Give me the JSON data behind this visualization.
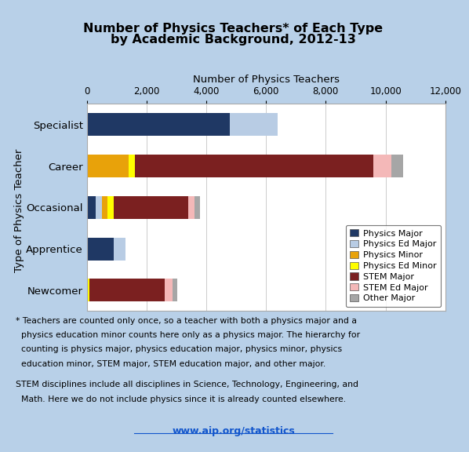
{
  "title_line1": "Number of Physics Teachers* of Each Type",
  "title_line2": "by Academic Background, 2012-13",
  "xlabel": "Number of Physics Teachers",
  "ylabel": "Type of Physics Teacher",
  "categories": [
    "Newcomer",
    "Apprentice",
    "Occasional",
    "Career",
    "Specialist"
  ],
  "series": {
    "Physics Major": [
      0,
      900,
      300,
      0,
      4800
    ],
    "Physics Ed Major": [
      0,
      400,
      200,
      0,
      1600
    ],
    "Physics Minor": [
      0,
      0,
      200,
      1400,
      0
    ],
    "Physics Ed Minor": [
      100,
      0,
      200,
      200,
      0
    ],
    "STEM Major": [
      2500,
      0,
      2500,
      8000,
      0
    ],
    "STEM Ed Major": [
      280,
      0,
      200,
      600,
      0
    ],
    "Other Major": [
      150,
      0,
      200,
      400,
      0
    ]
  },
  "colors": {
    "Physics Major": "#1f3864",
    "Physics Ed Major": "#b8cce4",
    "Physics Minor": "#e8a20a",
    "Physics Ed Minor": "#ffff00",
    "STEM Major": "#7b2020",
    "STEM Ed Major": "#f4b8b8",
    "Other Major": "#a6a6a6"
  },
  "xlim": [
    0,
    12000
  ],
  "xticks": [
    0,
    2000,
    4000,
    6000,
    8000,
    10000,
    12000
  ],
  "footnote1a": "* Teachers are counted only once, so a teacher with both a physics major and a",
  "footnote1b": "  physics education minor counts here only as a physics major. The hierarchy for",
  "footnote1c": "  counting is physics major, physics education major, physics minor, physics",
  "footnote1d": "  education minor, STEM major, STEM education major, and other major.",
  "footnote2a": "STEM disciplines include all disciplines in Science, Technology, Engineering, and",
  "footnote2b": "  Math. Here we do not include physics since it is already counted elsewhere.",
  "url": "www.aip.org/statistics",
  "background_color": "#b8d0e8",
  "chart_bg": "#ffffff"
}
